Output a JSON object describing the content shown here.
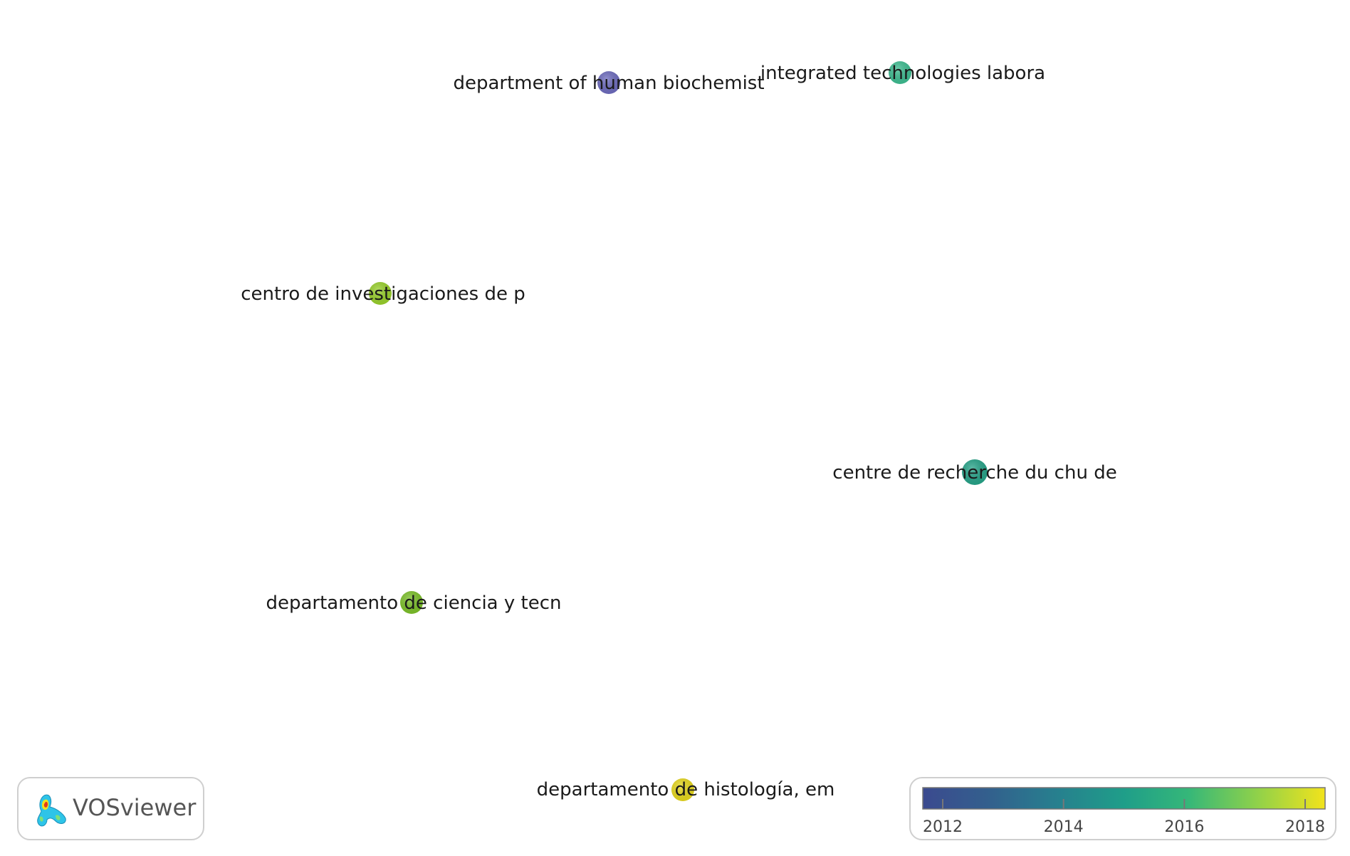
{
  "network": {
    "nodes": [
      {
        "label": "department of human biochemist",
        "year": 2012.3
      },
      {
        "label": "integrated technologies labora",
        "year": 2015.5
      },
      {
        "label": "centro de investigaciones de p",
        "year": 2017.3
      },
      {
        "label": "centre de recherche du chu de",
        "year": 2015.3
      },
      {
        "label": "departamento de ciencia y tecn",
        "year": 2017.0
      },
      {
        "label": "departamento de histología, em",
        "year": 2018.2
      }
    ]
  },
  "legend": {
    "ticks": [
      "2012",
      "2014",
      "2016",
      "2018"
    ],
    "range": [
      2011.67,
      2018.33
    ],
    "colors": [
      "#3b4a8f",
      "#2e6f8e",
      "#1f9e89",
      "#35b779",
      "#6ece58",
      "#b5de2b",
      "#f2e31c"
    ]
  },
  "logo": {
    "text": "VOSviewer"
  }
}
